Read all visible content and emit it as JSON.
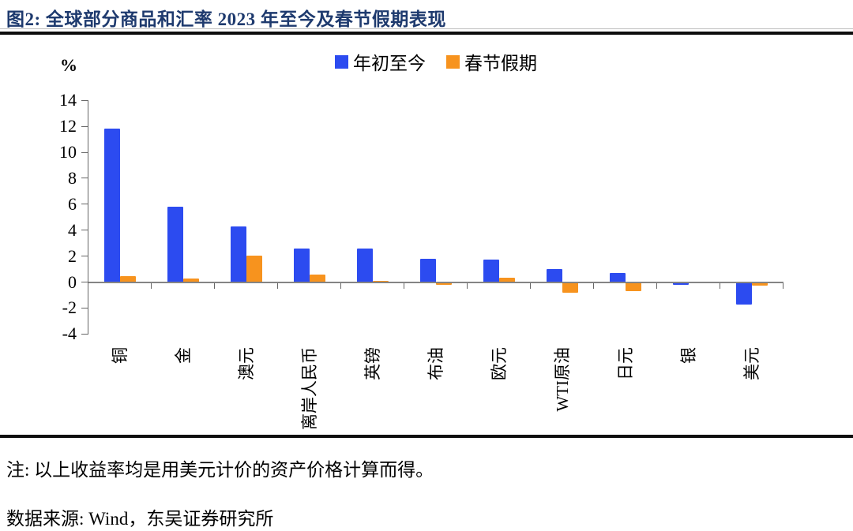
{
  "header": {
    "title": "图2:  全球部分商品和汇率 2023 年至今及春节假期表现"
  },
  "chart_data": {
    "type": "bar",
    "title": "全球部分商品和汇率 2023 年至今及春节假期表现",
    "unit_label": "%",
    "categories": [
      "铜",
      "金",
      "澳元",
      "离岸人民币",
      "英镑",
      "布油",
      "欧元",
      "WTI原油",
      "日元",
      "银",
      "美元"
    ],
    "series": [
      {
        "name": "年初至今",
        "color": "#2C4BF0",
        "values": [
          11.9,
          5.9,
          4.4,
          2.7,
          2.7,
          1.9,
          1.8,
          1.1,
          0.8,
          -0.2,
          -1.75
        ]
      },
      {
        "name": "春节假期",
        "color": "#F7931E",
        "values": [
          0.55,
          0.35,
          2.1,
          0.65,
          0.2,
          -0.2,
          0.4,
          -0.8,
          -0.7,
          0.1,
          -0.25
        ]
      }
    ],
    "ylim": [
      -4,
      14
    ],
    "yticks": [
      14,
      12,
      10,
      8,
      6,
      4,
      2,
      0,
      -2,
      -4
    ],
    "legend_position": "top-center",
    "grid": false,
    "axis_color": "#848484"
  },
  "footer": {
    "note": "注:  以上收益率均是用美元计价的资产价格计算而得。",
    "source": "数据来源:  Wind，东吴证券研究所"
  }
}
